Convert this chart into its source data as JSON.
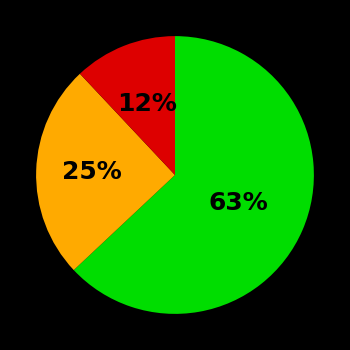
{
  "slices": [
    63,
    25,
    12
  ],
  "colors": [
    "#00dd00",
    "#ffaa00",
    "#dd0000"
  ],
  "labels": [
    "63%",
    "25%",
    "12%"
  ],
  "label_radii": [
    0.5,
    0.6,
    0.55
  ],
  "background_color": "#000000",
  "label_fontsize": 18,
  "label_fontweight": "bold",
  "startangle": 90,
  "figsize": [
    3.5,
    3.5
  ],
  "dpi": 100
}
